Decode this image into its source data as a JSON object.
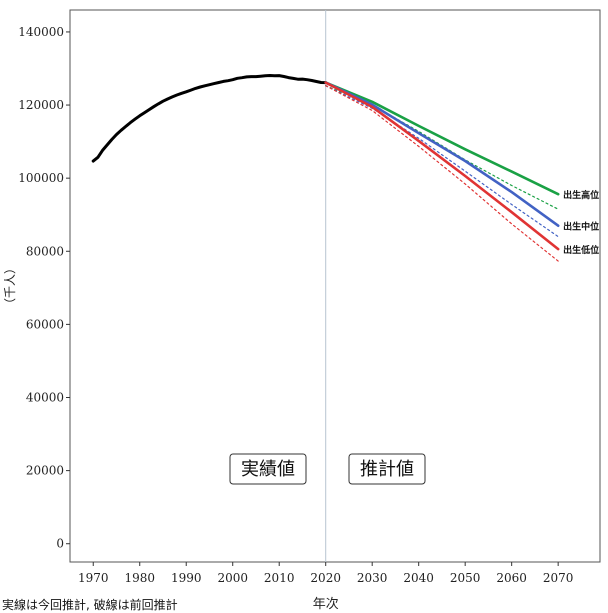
{
  "chart_data": {
    "type": "line",
    "xlabel": "年次",
    "ylabel": "（千人）",
    "xlim": [
      1965,
      2079
    ],
    "ylim": [
      -5000,
      146000
    ],
    "x_ticks": [
      1970,
      1980,
      1990,
      2000,
      2010,
      2020,
      2030,
      2040,
      2050,
      2060,
      2070
    ],
    "y_ticks": [
      0,
      20000,
      40000,
      60000,
      80000,
      100000,
      120000,
      140000
    ],
    "divider_x": 2020,
    "region_labels": {
      "actual": "実績値",
      "projected": "推計値"
    },
    "note": "実線は今回推計, 破線は前回推計",
    "series": [
      {
        "name": "",
        "style": "solid",
        "color": "#000000",
        "x": [
          1970,
          1971,
          1972,
          1973,
          1974,
          1975,
          1976,
          1977,
          1978,
          1979,
          1980,
          1981,
          1982,
          1983,
          1984,
          1985,
          1986,
          1987,
          1988,
          1989,
          1990,
          1991,
          1992,
          1993,
          1994,
          1995,
          1996,
          1997,
          1998,
          1999,
          2000,
          2001,
          2002,
          2003,
          2004,
          2005,
          2006,
          2007,
          2008,
          2009,
          2010,
          2011,
          2012,
          2013,
          2014,
          2015,
          2016,
          2017,
          2018,
          2019,
          2020
        ],
        "y": [
          104665,
          105697,
          107595,
          109104,
          110573,
          111940,
          113094,
          114165,
          115190,
          116155,
          117060,
          117902,
          118728,
          119536,
          120305,
          121049,
          121660,
          122239,
          122745,
          123205,
          123611,
          124101,
          124567,
          124938,
          125265,
          125570,
          125859,
          126157,
          126472,
          126667,
          126926,
          127316,
          127486,
          127694,
          127787,
          127768,
          127901,
          128033,
          128084,
          128032,
          128057,
          127799,
          127515,
          127298,
          127083,
          127095,
          126933,
          126706,
          126443,
          126167,
          126146
        ]
      },
      {
        "name": "出生高位",
        "style": "solid",
        "color": "#1aa145",
        "x": [
          2020,
          2030,
          2040,
          2050,
          2060,
          2070
        ],
        "y": [
          126146,
          120900,
          114300,
          107900,
          101800,
          95600
        ]
      },
      {
        "name": "出生中位",
        "style": "solid",
        "color": "#4262c4",
        "x": [
          2020,
          2030,
          2040,
          2050,
          2060,
          2070
        ],
        "y": [
          126146,
          120100,
          112300,
          104700,
          96200,
          87000
        ]
      },
      {
        "name": "出生低位",
        "style": "solid",
        "color": "#e03434",
        "x": [
          2020,
          2030,
          2040,
          2050,
          2060,
          2070
        ],
        "y": [
          126146,
          119500,
          110200,
          100600,
          90700,
          80600
        ]
      },
      {
        "name": "",
        "style": "dashed",
        "color": "#1aa145",
        "x": [
          2020,
          2030,
          2040,
          2050,
          2060,
          2070
        ],
        "y": [
          125300,
          120000,
          112800,
          105000,
          98000,
          91500
        ]
      },
      {
        "name": "",
        "style": "dashed",
        "color": "#4262c4",
        "x": [
          2020,
          2030,
          2040,
          2050,
          2060,
          2070
        ],
        "y": [
          125300,
          119100,
          110900,
          101900,
          92800,
          84000
        ]
      },
      {
        "name": "",
        "style": "dashed",
        "color": "#e03434",
        "x": [
          2020,
          2030,
          2040,
          2050,
          2060,
          2070
        ],
        "y": [
          125300,
          118500,
          108700,
          98400,
          87500,
          77300
        ]
      }
    ]
  }
}
